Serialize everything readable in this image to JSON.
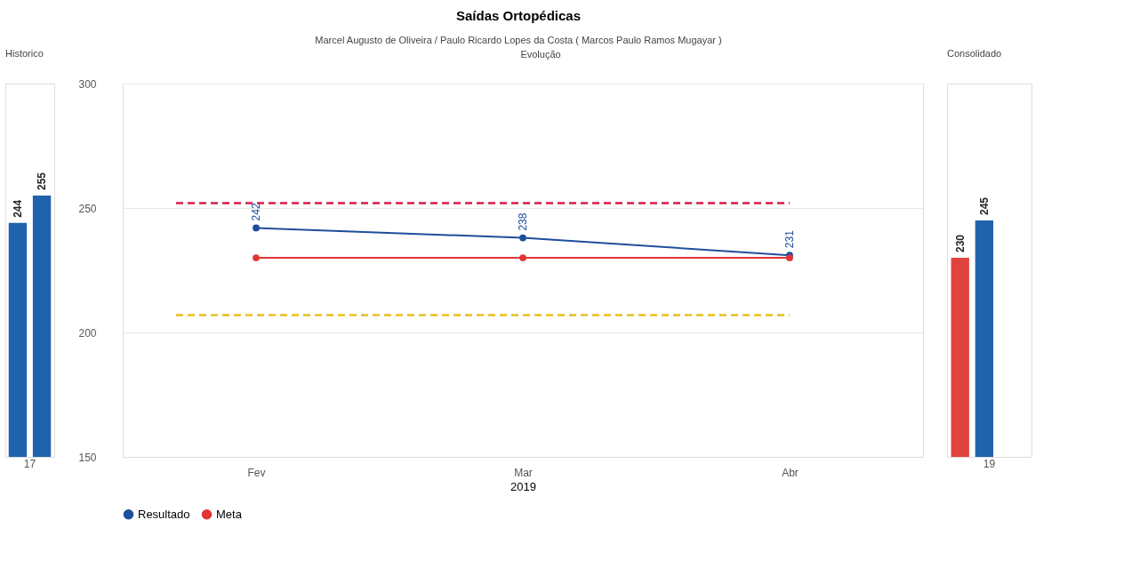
{
  "chart_data": [
    {
      "type": "bar",
      "title": "Historico",
      "categories": [
        "17"
      ],
      "ylim": [
        150,
        300
      ],
      "tick_labels": "x",
      "grid": false,
      "data_labels": true,
      "series": [
        {
          "color": "#1f63ad",
          "values": [
            244
          ]
        },
        {
          "color": "#1f63ad",
          "values": [
            255
          ]
        }
      ]
    },
    {
      "type": "line",
      "title": "Saídas Ortopédicas",
      "subtitle": "Marcel Augusto de Oliveira / Paulo Ricardo Lopes da Costa ( Marcos Paulo Ramos Mugayar )",
      "annotations": [
        "Evolução"
      ],
      "xlabel": "2019",
      "categories": [
        "Fev",
        "Mar",
        "Abr"
      ],
      "ylim": [
        150,
        300
      ],
      "yticks": [
        150,
        200,
        250,
        300
      ],
      "grid": "y",
      "legend": "bottom",
      "marker": "circle",
      "series": [
        {
          "name": "Resultado",
          "color": "#1f4e9c",
          "values": [
            242,
            238,
            231
          ],
          "value_labels": [
            "242",
            "238",
            "231"
          ]
        },
        {
          "name": "Meta",
          "color": "#e03535",
          "values": [
            230,
            230,
            230
          ]
        }
      ],
      "ref_lines": [
        {
          "axis": "y",
          "value": 252,
          "color": "#d81b4a",
          "line_style": "dashed"
        },
        {
          "axis": "y",
          "value": 207,
          "color": "#e8c020",
          "line_style": "dashed"
        }
      ]
    },
    {
      "type": "bar",
      "title": "Consolidado",
      "categories": [
        "19"
      ],
      "ylim": [
        150,
        300
      ],
      "tick_labels": "x",
      "grid": false,
      "data_labels": true,
      "series": [
        {
          "color": "#e0433d",
          "values": [
            230
          ]
        },
        {
          "color": "#1f63ad",
          "values": [
            245
          ]
        }
      ]
    }
  ]
}
